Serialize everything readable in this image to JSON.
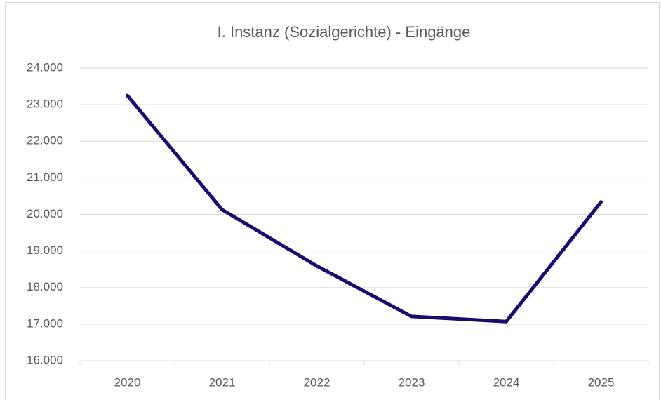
{
  "chart_data": {
    "type": "line",
    "title": "I. Instanz (Sozialgerichte) - Eingänge",
    "categories": [
      "2020",
      "2021",
      "2022",
      "2023",
      "2024",
      "2025"
    ],
    "values": [
      23250,
      20130,
      18590,
      17210,
      17070,
      20340
    ],
    "color": "#1b0b6e",
    "ylim": [
      16000,
      24000
    ],
    "yticks": [
      {
        "value": 16000,
        "label": "16.000"
      },
      {
        "value": 17000,
        "label": "17.000"
      },
      {
        "value": 18000,
        "label": "18.000"
      },
      {
        "value": 19000,
        "label": "19.000"
      },
      {
        "value": 20000,
        "label": "20.000"
      },
      {
        "value": 21000,
        "label": "21.000"
      },
      {
        "value": 22000,
        "label": "22.000"
      },
      {
        "value": 23000,
        "label": "23.000"
      },
      {
        "value": 24000,
        "label": "24.000"
      }
    ],
    "grid": true
  }
}
